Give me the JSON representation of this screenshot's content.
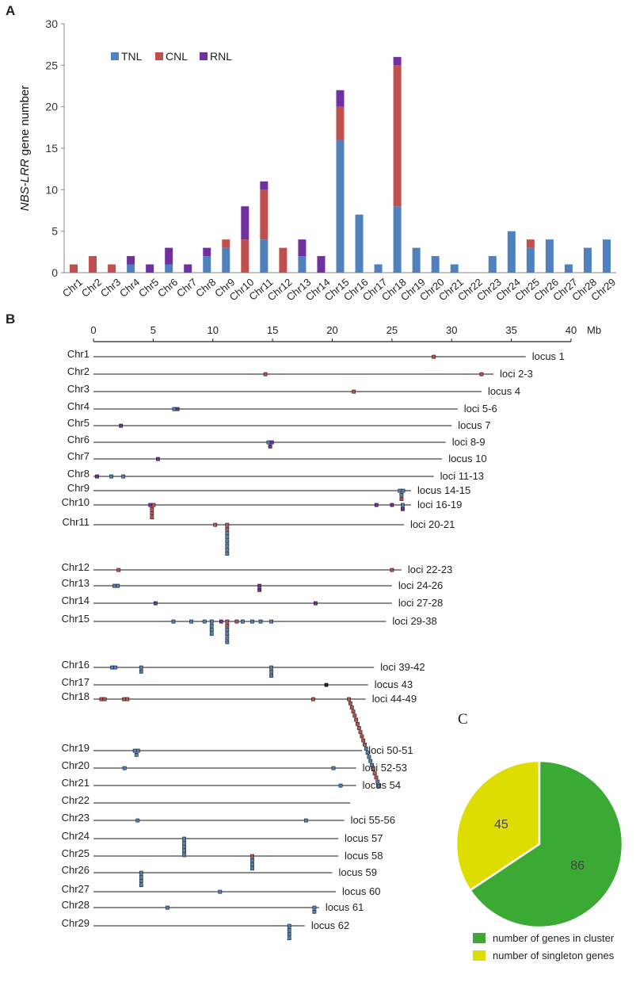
{
  "panels": {
    "a": "A",
    "b": "B",
    "c": "C"
  },
  "colors": {
    "TNL": "#4f81bd",
    "CNL": "#c0504d",
    "RNL": "#7030a0",
    "axis": "#888888",
    "chrom_line": "#666666",
    "cluster": "#3aaa35",
    "singleton": "#dddd00"
  },
  "chart_data": [
    {
      "type": "bar",
      "stacked": true,
      "title": "",
      "xlabel": "",
      "ylabel_italic": "NBS-LRR",
      "ylabel_rest": " gene number",
      "ylim": [
        0,
        30
      ],
      "yticks": [
        0,
        5,
        10,
        15,
        20,
        25,
        30
      ],
      "categories": [
        "Chr1",
        "Chr2",
        "Chr3",
        "Chr4",
        "Chr5",
        "Chr6",
        "Chr7",
        "Chr8",
        "Chr9",
        "Chr10",
        "Chr11",
        "Chr12",
        "Chr13",
        "Chr14",
        "Chr15",
        "Chr16",
        "Chr17",
        "Chr18",
        "Chr19",
        "Chr20",
        "Chr21",
        "Chr22",
        "Chr23",
        "Chr24",
        "Chr25",
        "Chr26",
        "Chr27",
        "Chr28",
        "Chr29"
      ],
      "series": [
        {
          "name": "TNL",
          "values": [
            0,
            0,
            0,
            1,
            0,
            1,
            0,
            2,
            3,
            0,
            4,
            0,
            2,
            0,
            16,
            7,
            1,
            8,
            3,
            2,
            1,
            0,
            2,
            5,
            3,
            4,
            1,
            3,
            4
          ]
        },
        {
          "name": "CNL",
          "values": [
            1,
            2,
            1,
            0,
            0,
            0,
            0,
            0,
            1,
            4,
            6,
            3,
            0,
            0,
            4,
            0,
            0,
            17,
            0,
            0,
            0,
            0,
            0,
            0,
            1,
            0,
            0,
            0,
            0
          ]
        },
        {
          "name": "RNL",
          "values": [
            0,
            0,
            0,
            1,
            1,
            2,
            1,
            1,
            0,
            4,
            1,
            0,
            2,
            2,
            2,
            0,
            0,
            1,
            0,
            0,
            0,
            0,
            0,
            0,
            0,
            0,
            0,
            0,
            0
          ]
        }
      ],
      "legend": [
        "TNL",
        "CNL",
        "RNL"
      ],
      "legend_position": "top-left"
    },
    {
      "type": "chromosome-map",
      "unit": "Mb",
      "xlim": [
        0,
        40
      ],
      "xticks": [
        0,
        5,
        10,
        15,
        20,
        25,
        30,
        35,
        40
      ],
      "chromosomes": [
        {
          "name": "Chr1",
          "length": 36.2,
          "label": "locus 1",
          "genes": [
            {
              "pos": 28.5,
              "stack": [
                [
                  "C"
                ]
              ]
            }
          ]
        },
        {
          "name": "Chr2",
          "length": 33.5,
          "label": "loci 2-3",
          "genes": [
            {
              "pos": 14.4,
              "stack": [
                [
                  "C"
                ]
              ]
            },
            {
              "pos": 32.5,
              "stack": [
                [
                  "C"
                ]
              ]
            }
          ]
        },
        {
          "name": "Chr3",
          "length": 32.5,
          "label": "locus 4",
          "genes": [
            {
              "pos": 21.8,
              "stack": [
                [
                  "C"
                ]
              ]
            }
          ]
        },
        {
          "name": "Chr4",
          "length": 30.5,
          "label": "loci 5-6",
          "genes": [
            {
              "pos": 6.9,
              "stack": [
                [
                  "T",
                  "R"
                ]
              ]
            }
          ]
        },
        {
          "name": "Chr5",
          "length": 30.0,
          "label": "locus 7",
          "genes": [
            {
              "pos": 2.3,
              "stack": [
                [
                  "R"
                ]
              ]
            }
          ]
        },
        {
          "name": "Chr6",
          "length": 29.5,
          "label": "loci 8-9",
          "genes": [
            {
              "pos": 14.8,
              "stack": [
                [
                  "T",
                  "R"
                ],
                [
                  "R"
                ]
              ]
            }
          ]
        },
        {
          "name": "Chr7",
          "length": 29.2,
          "label": "locus 10",
          "genes": [
            {
              "pos": 5.4,
              "stack": [
                [
                  "R"
                ]
              ]
            }
          ]
        },
        {
          "name": "Chr8",
          "length": 28.5,
          "label": "loci 11-13",
          "genes": [
            {
              "pos": 0.3,
              "stack": [
                [
                  "R"
                ]
              ]
            },
            {
              "pos": 1.5,
              "stack": [
                [
                  "T"
                ]
              ]
            },
            {
              "pos": 2.5,
              "stack": [
                [
                  "T"
                ]
              ]
            }
          ]
        },
        {
          "name": "Chr9",
          "length": 26.6,
          "label": "locus 14-15",
          "genes": [
            {
              "pos": 25.8,
              "stack": [
                [
                  "T",
                  "T"
                ],
                [
                  "T"
                ],
                [
                  "C"
                ]
              ]
            }
          ]
        },
        {
          "name": "Chr10",
          "length": 26.6,
          "label": "loci 16-19",
          "genes": [
            {
              "pos": 4.9,
              "stack": [
                [
                  "R",
                  "C"
                ],
                [
                  "C"
                ],
                [
                  "C"
                ],
                [
                  "C"
                ]
              ]
            },
            {
              "pos": 23.7,
              "stack": [
                [
                  "R"
                ]
              ]
            },
            {
              "pos": 25.0,
              "stack": [
                [
                  "R"
                ]
              ]
            },
            {
              "pos": 25.9,
              "stack": [
                [
                  "T"
                ],
                [
                  "R"
                ]
              ]
            }
          ]
        },
        {
          "name": "Chr11",
          "length": 26.0,
          "label": "loci 20-21",
          "genes": [
            {
              "pos": 10.2,
              "stack": [
                [
                  "C"
                ]
              ]
            },
            {
              "pos": 11.2,
              "stack": [
                [
                  "C"
                ],
                [
                  "C"
                ],
                [
                  "T"
                ],
                [
                  "T"
                ],
                [
                  "T"
                ],
                [
                  "T"
                ],
                [
                  "T"
                ],
                [
                  "T"
                ]
              ]
            }
          ]
        },
        {
          "name": "Chr12",
          "length": 25.8,
          "label": "loci 22-23",
          "genes": [
            {
              "pos": 2.1,
              "stack": [
                [
                  "C"
                ]
              ]
            },
            {
              "pos": 25.0,
              "stack": [
                [
                  "C"
                ]
              ]
            }
          ]
        },
        {
          "name": "Chr13",
          "length": 25.0,
          "label": "loci 24-26",
          "genes": [
            {
              "pos": 1.9,
              "stack": [
                [
                  "T",
                  "T"
                ]
              ]
            },
            {
              "pos": 13.9,
              "stack": [
                [
                  "R"
                ],
                [
                  "R"
                ]
              ]
            }
          ]
        },
        {
          "name": "Chr14",
          "length": 25.0,
          "label": "loci 27-28",
          "genes": [
            {
              "pos": 5.2,
              "stack": [
                [
                  "R"
                ]
              ]
            },
            {
              "pos": 18.6,
              "stack": [
                [
                  "R"
                ]
              ]
            }
          ]
        },
        {
          "name": "Chr15",
          "length": 24.5,
          "label": "loci 29-38",
          "genes": [
            {
              "pos": 6.7,
              "stack": [
                [
                  "T"
                ]
              ]
            },
            {
              "pos": 8.2,
              "stack": [
                [
                  "T"
                ]
              ]
            },
            {
              "pos": 9.3,
              "stack": [
                [
                  "T"
                ]
              ]
            },
            {
              "pos": 9.9,
              "stack": [
                [
                  "T"
                ],
                [
                  "T"
                ],
                [
                  "T"
                ],
                [
                  "T"
                ]
              ]
            },
            {
              "pos": 10.7,
              "stack": [
                [
                  "R"
                ]
              ]
            },
            {
              "pos": 11.2,
              "stack": [
                [
                  "C"
                ],
                [
                  "C"
                ],
                [
                  "T"
                ],
                [
                  "T"
                ],
                [
                  "T"
                ],
                [
                  "T"
                ]
              ]
            },
            {
              "pos": 12.0,
              "stack": [
                [
                  "C"
                ]
              ]
            },
            {
              "pos": 12.5,
              "stack": [
                [
                  "T"
                ]
              ]
            },
            {
              "pos": 13.3,
              "stack": [
                [
                  "T"
                ]
              ]
            },
            {
              "pos": 14.0,
              "stack": [
                [
                  "T"
                ]
              ]
            },
            {
              "pos": 14.9,
              "stack": [
                [
                  "T"
                ]
              ]
            }
          ]
        },
        {
          "name": "Chr16",
          "length": 23.5,
          "label": "loci 39-42",
          "genes": [
            {
              "pos": 1.7,
              "stack": [
                [
                  "T",
                  "T"
                ]
              ]
            },
            {
              "pos": 4.0,
              "stack": [
                [
                  "T"
                ],
                [
                  "T"
                ]
              ]
            },
            {
              "pos": 14.9,
              "stack": [
                [
                  "T"
                ],
                [
                  "T"
                ],
                [
                  "T"
                ]
              ]
            }
          ]
        },
        {
          "name": "Chr17",
          "length": 23.0,
          "label": "locus 43",
          "genes": [
            {
              "pos": 19.5,
              "stack": [
                [
                  "K"
                ]
              ]
            }
          ]
        },
        {
          "name": "Chr18",
          "length": 22.8,
          "label": "loci 44-49",
          "genes": [
            {
              "pos": 0.8,
              "stack": [
                [
                  "C",
                  "C"
                ]
              ]
            },
            {
              "pos": 2.7,
              "stack": [
                [
                  "C",
                  "C"
                ]
              ]
            },
            {
              "pos": 18.4,
              "stack": [
                [
                  "C"
                ]
              ]
            },
            {
              "pos": 21.4,
              "stack": [
                [
                  "C"
                ],
                [
                  "C"
                ],
                [
                  "C"
                ],
                [
                  "C"
                ],
                [
                  "C"
                ],
                [
                  "C"
                ],
                [
                  "C"
                ],
                [
                  "C"
                ],
                [
                  "C"
                ],
                [
                  "C"
                ],
                [
                  "C"
                ],
                [
                  "C"
                ],
                [
                  "T"
                ],
                [
                  "T"
                ],
                [
                  "T"
                ],
                [
                  "T"
                ],
                [
                  "T"
                ],
                [
                  "C"
                ],
                [
                  "C"
                ],
                [
                  "C"
                ],
                [
                  "T"
                ],
                [
                  "T"
                ]
              ],
              "stagger": 0.12
            }
          ]
        },
        {
          "name": "Chr19",
          "length": 22.5,
          "label": "loci 50-51",
          "genes": [
            {
              "pos": 3.6,
              "stack": [
                [
                  "T",
                  "T"
                ],
                [
                  "T"
                ]
              ]
            }
          ]
        },
        {
          "name": "Chr20",
          "length": 22.0,
          "label": "loci 52-53",
          "genes": [
            {
              "pos": 2.6,
              "stack": [
                [
                  "T"
                ]
              ]
            },
            {
              "pos": 20.1,
              "stack": [
                [
                  "T"
                ]
              ]
            }
          ]
        },
        {
          "name": "Chr21",
          "length": 22.0,
          "label": "locus 54",
          "genes": [
            {
              "pos": 20.7,
              "stack": [
                [
                  "T"
                ]
              ]
            }
          ]
        },
        {
          "name": "Chr22",
          "length": 21.5,
          "label": "",
          "genes": []
        },
        {
          "name": "Chr23",
          "length": 21.0,
          "label": "loci 55-56",
          "genes": [
            {
              "pos": 3.7,
              "stack": [
                [
                  "T"
                ]
              ]
            },
            {
              "pos": 17.8,
              "stack": [
                [
                  "T"
                ]
              ]
            }
          ]
        },
        {
          "name": "Chr24",
          "length": 20.5,
          "label": "locus 57",
          "genes": [
            {
              "pos": 7.6,
              "stack": [
                [
                  "T"
                ],
                [
                  "T"
                ],
                [
                  "T"
                ],
                [
                  "T"
                ],
                [
                  "T"
                ]
              ]
            }
          ]
        },
        {
          "name": "Chr25",
          "length": 20.5,
          "label": "locus 58",
          "genes": [
            {
              "pos": 13.3,
              "stack": [
                [
                  "C"
                ],
                [
                  "T"
                ],
                [
                  "T"
                ],
                [
                  "T"
                ]
              ]
            }
          ]
        },
        {
          "name": "Chr26",
          "length": 20.0,
          "label": "locus 59",
          "genes": [
            {
              "pos": 4.0,
              "stack": [
                [
                  "T"
                ],
                [
                  "T"
                ],
                [
                  "T"
                ],
                [
                  "T"
                ]
              ]
            }
          ]
        },
        {
          "name": "Chr27",
          "length": 20.3,
          "label": "locus 60",
          "genes": [
            {
              "pos": 10.6,
              "stack": [
                [
                  "T"
                ]
              ]
            }
          ]
        },
        {
          "name": "Chr28",
          "length": 18.9,
          "label": "locus 61",
          "genes": [
            {
              "pos": 6.2,
              "stack": [
                [
                  "T"
                ]
              ]
            },
            {
              "pos": 18.5,
              "stack": [
                [
                  "T"
                ],
                [
                  "T"
                ]
              ]
            }
          ]
        },
        {
          "name": "Chr29",
          "length": 17.7,
          "label": "locus 62",
          "genes": [
            {
              "pos": 16.4,
              "stack": [
                [
                  "T"
                ],
                [
                  "T"
                ],
                [
                  "T"
                ],
                [
                  "T"
                ]
              ]
            }
          ]
        }
      ]
    },
    {
      "type": "pie",
      "slices": [
        {
          "name": "number of genes in cluster",
          "value": 86
        },
        {
          "name": "number of singleton genes",
          "value": 45
        }
      ]
    }
  ]
}
